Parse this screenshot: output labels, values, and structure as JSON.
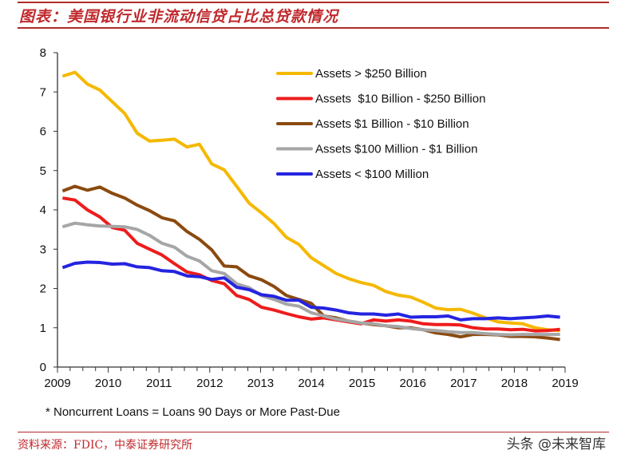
{
  "header": {
    "title": "图表：美国银行业非流动信贷占比总贷款情况"
  },
  "footer": {
    "source": "资料来源：FDIC，中泰证券研究所",
    "watermark": "头条 @未来智库"
  },
  "chart_data": {
    "type": "line",
    "title": "",
    "xlabel": "",
    "ylabel": "",
    "note": "* Noncurrent Loans = Loans 90 Days or More Past-Due",
    "ylim": [
      0,
      8
    ],
    "yticks": [
      "0",
      "1",
      "2",
      "3",
      "4",
      "5",
      "6",
      "7",
      "8"
    ],
    "xlim": [
      2009,
      2019
    ],
    "xticks": [
      "2009",
      "2010",
      "2011",
      "2012",
      "2013",
      "2014",
      "2015",
      "2016",
      "2017",
      "2018",
      "2019"
    ],
    "x_start": 2009.1,
    "x_step": 0.245,
    "grid": false,
    "legend_position": "top-right",
    "series": [
      {
        "name": "Assets > $250 Billion",
        "color": "#f5b800",
        "values": [
          7.4,
          7.5,
          7.2,
          7.05,
          6.75,
          6.45,
          5.95,
          5.75,
          5.77,
          5.8,
          5.6,
          5.67,
          5.17,
          5.02,
          4.6,
          4.17,
          3.92,
          3.65,
          3.3,
          3.12,
          2.78,
          2.58,
          2.38,
          2.25,
          2.15,
          2.08,
          1.92,
          1.83,
          1.78,
          1.65,
          1.5,
          1.46,
          1.47,
          1.37,
          1.25,
          1.15,
          1.12,
          1.1,
          1.0,
          0.95,
          0.93
        ]
      },
      {
        "name": "Assets  $10 Billion - $250 Billion",
        "color": "#ee1c1c",
        "values": [
          4.3,
          4.25,
          4.0,
          3.82,
          3.55,
          3.48,
          3.15,
          3.0,
          2.85,
          2.63,
          2.42,
          2.35,
          2.2,
          2.12,
          1.82,
          1.72,
          1.52,
          1.45,
          1.36,
          1.28,
          1.22,
          1.25,
          1.2,
          1.15,
          1.1,
          1.2,
          1.17,
          1.2,
          1.17,
          1.1,
          1.08,
          1.08,
          1.07,
          1.0,
          0.97,
          0.97,
          0.95,
          0.96,
          0.92,
          0.93,
          0.96
        ]
      },
      {
        "name": "Assets $1 Billion - $10 Billion",
        "color": "#8b4a10",
        "values": [
          4.48,
          4.6,
          4.5,
          4.58,
          4.42,
          4.3,
          4.12,
          3.98,
          3.8,
          3.72,
          3.45,
          3.25,
          2.98,
          2.57,
          2.55,
          2.32,
          2.22,
          2.05,
          1.82,
          1.72,
          1.62,
          1.3,
          1.25,
          1.17,
          1.12,
          1.08,
          1.05,
          1.0,
          1.0,
          0.95,
          0.87,
          0.83,
          0.77,
          0.83,
          0.83,
          0.82,
          0.78,
          0.78,
          0.77,
          0.74,
          0.7
        ]
      },
      {
        "name": "Assets $100 Million - $1 Billion",
        "color": "#a6a6a6",
        "values": [
          3.57,
          3.66,
          3.62,
          3.59,
          3.58,
          3.57,
          3.5,
          3.35,
          3.15,
          3.05,
          2.82,
          2.7,
          2.45,
          2.38,
          2.12,
          2.02,
          1.82,
          1.72,
          1.6,
          1.55,
          1.38,
          1.3,
          1.22,
          1.17,
          1.12,
          1.1,
          1.05,
          1.03,
          0.98,
          0.95,
          0.93,
          0.9,
          0.88,
          0.88,
          0.85,
          0.83,
          0.82,
          0.83,
          0.83,
          0.83,
          0.83
        ]
      },
      {
        "name": "Assets < $100 Million",
        "color": "#2424e0",
        "values": [
          2.53,
          2.64,
          2.67,
          2.66,
          2.62,
          2.63,
          2.55,
          2.53,
          2.45,
          2.43,
          2.32,
          2.3,
          2.23,
          2.27,
          2.03,
          1.97,
          1.84,
          1.8,
          1.7,
          1.7,
          1.52,
          1.5,
          1.45,
          1.38,
          1.35,
          1.35,
          1.32,
          1.35,
          1.27,
          1.28,
          1.28,
          1.3,
          1.2,
          1.23,
          1.23,
          1.25,
          1.23,
          1.25,
          1.27,
          1.3,
          1.27
        ]
      }
    ]
  }
}
